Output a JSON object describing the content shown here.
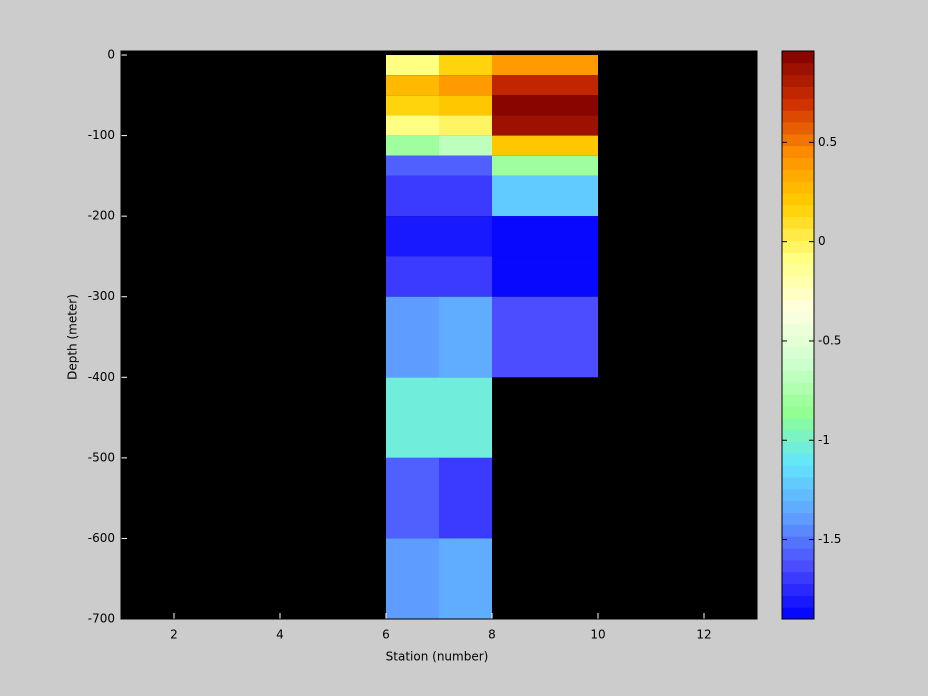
{
  "chart_data": {
    "type": "heatmap",
    "xlabel": "Station (number)",
    "ylabel": "Depth (meter)",
    "xlim": [
      1,
      13
    ],
    "ylim": [
      -700,
      5
    ],
    "xticks": [
      2,
      4,
      6,
      8,
      10,
      12
    ],
    "yticks": [
      0,
      -100,
      -200,
      -300,
      -400,
      -500,
      -600,
      -700
    ],
    "x_edges": [
      6,
      7,
      8,
      10
    ],
    "y_edges": [
      0,
      -25,
      -50,
      -75,
      -100,
      -125,
      -150,
      -200,
      -250,
      -300,
      -400,
      -500,
      -600,
      -700
    ],
    "values": [
      [
        -0.1,
        0.15,
        0.4
      ],
      [
        0.25,
        0.4,
        0.75
      ],
      [
        0.15,
        0.2,
        0.92
      ],
      [
        -0.1,
        -0.05,
        0.85
      ],
      [
        -0.8,
        -0.7,
        0.2
      ],
      [
        -1.55,
        -1.6,
        -0.8
      ],
      [
        -1.72,
        -1.72,
        -1.2
      ],
      [
        -1.8,
        -1.8,
        -1.85
      ],
      [
        -1.72,
        -1.72,
        -1.9
      ],
      [
        -1.4,
        -1.35,
        -1.62
      ],
      [
        -1.05,
        -1.05,
        null
      ],
      [
        -1.6,
        -1.7,
        null
      ],
      [
        -1.4,
        -1.35,
        null
      ]
    ],
    "clim": [
      -1.9,
      0.96
    ],
    "colormap": [
      "#0000ff",
      "#4a4aff",
      "#5fa0ff",
      "#62e4ff",
      "#90ff90",
      "#d0ffd0",
      "#ffffe0",
      "#ffff80",
      "#ffd000",
      "#ff9000",
      "#d03000",
      "#800000"
    ],
    "nan_color": "#000000",
    "colorbar_ticks": [
      0.5,
      0,
      -0.5,
      -1,
      -1.5
    ]
  }
}
